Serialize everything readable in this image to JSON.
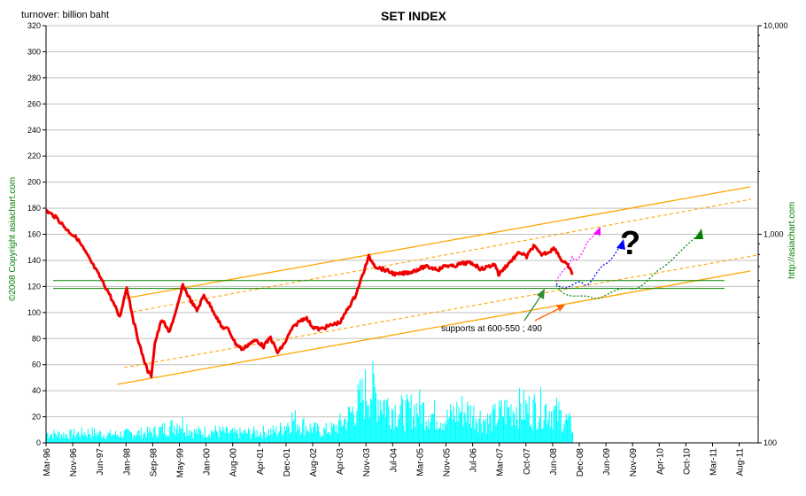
{
  "chart_data": {
    "type": "line",
    "title": "SET INDEX",
    "left_axis_label": "turnover: billion baht",
    "left_axis_ticks": [
      0,
      20,
      40,
      60,
      80,
      100,
      120,
      140,
      160,
      180,
      200,
      220,
      240,
      260,
      280,
      300,
      320
    ],
    "left_axis_range": [
      0,
      320
    ],
    "right_axis_ticks": [
      "100",
      "1,000",
      "10,000"
    ],
    "right_axis_values": [
      100,
      1000,
      10000
    ],
    "right_axis_scale": "log",
    "right_axis_range": [
      100,
      10000
    ],
    "x_tick_labels": [
      "Mar-96",
      "Nov-96",
      "Jun-97",
      "Jan-98",
      "Sep-98",
      "May-99",
      "Jan-00",
      "Aug-00",
      "Apr-01",
      "Dec-01",
      "Aug-02",
      "Apr-03",
      "Nov-03",
      "Jul-04",
      "Mar-05",
      "Nov-05",
      "Jul-06",
      "Mar-07",
      "Oct-07",
      "Jun-08",
      "Dec-08",
      "Jun-09",
      "Nov-09",
      "Apr-10",
      "Oct-10",
      "Mar-11",
      "Aug-11"
    ],
    "credit_left": "©2008 Copyright asiachart.com",
    "credit_right": "http://asiachart.com",
    "annotation": "supports at 600-550 ; 490",
    "question_mark": "?",
    "grid": "horizontal",
    "colors": {
      "index_line": "#ff0000",
      "index_line_dark": "#990000",
      "turnover_bars": "#00ffff",
      "channel_lines": "#ffa500",
      "support_lines": "#008000",
      "gridlines": "#c0c0c0",
      "projection_magenta": "#ff00ff",
      "projection_blue": "#0000ff",
      "projection_green": "#008000",
      "arrow_green": "#2e8b2e",
      "arrow_orange": "#ff6600"
    },
    "series": [
      {
        "name": "SET index",
        "axis": "right",
        "dates": [
          "1996-03",
          "1996-06",
          "1996-09",
          "1996-12",
          "1997-03",
          "1997-06",
          "1997-09",
          "1997-12",
          "1998-02",
          "1998-04",
          "1998-06",
          "1998-08",
          "1998-09",
          "1998-10",
          "1998-12",
          "1999-02",
          "1999-04",
          "1999-06",
          "1999-08",
          "1999-10",
          "1999-12",
          "2000-01",
          "2000-03",
          "2000-05",
          "2000-07",
          "2000-09",
          "2000-11",
          "2001-01",
          "2001-03",
          "2001-05",
          "2001-07",
          "2001-09",
          "2001-11",
          "2002-01",
          "2002-03",
          "2002-05",
          "2002-07",
          "2002-09",
          "2002-11",
          "2003-01",
          "2003-03",
          "2003-05",
          "2003-07",
          "2003-09",
          "2003-11",
          "2004-01",
          "2004-03",
          "2004-05",
          "2004-07",
          "2004-09",
          "2004-11",
          "2005-01",
          "2005-03",
          "2005-05",
          "2005-07",
          "2005-09",
          "2005-11",
          "2006-01",
          "2006-03",
          "2006-05",
          "2006-07",
          "2006-09",
          "2006-11",
          "2006-12",
          "2007-02",
          "2007-04",
          "2007-06",
          "2007-08",
          "2007-10",
          "2007-12",
          "2008-02",
          "2008-04",
          "2008-06",
          "2008-08",
          "2008-09"
        ],
        "values": [
          1300,
          1200,
          1050,
          950,
          780,
          640,
          520,
          400,
          560,
          380,
          280,
          220,
          210,
          300,
          390,
          340,
          420,
          570,
          490,
          430,
          510,
          480,
          420,
          360,
          350,
          300,
          280,
          300,
          310,
          290,
          320,
          270,
          300,
          350,
          380,
          400,
          360,
          350,
          360,
          370,
          380,
          440,
          500,
          620,
          780,
          700,
          680,
          660,
          640,
          650,
          660,
          680,
          700,
          690,
          680,
          710,
          700,
          720,
          730,
          720,
          680,
          700,
          720,
          640,
          700,
          760,
          820,
          780,
          880,
          800,
          820,
          860,
          750,
          700,
          640
        ]
      },
      {
        "name": "turnover",
        "axis": "left",
        "type": "bar",
        "dates": [
          "1996-03",
          "1996-09",
          "1997-03",
          "1997-09",
          "1998-03",
          "1998-09",
          "1999-03",
          "1999-05",
          "1999-09",
          "2000-03",
          "2000-09",
          "2001-03",
          "2001-09",
          "2002-01",
          "2002-05",
          "2002-09",
          "2003-01",
          "2003-05",
          "2003-09",
          "2003-11",
          "2004-01",
          "2004-05",
          "2004-09",
          "2005-01",
          "2005-05",
          "2005-09",
          "2006-01",
          "2006-05",
          "2006-09",
          "2007-01",
          "2007-05",
          "2007-09",
          "2008-01",
          "2008-05",
          "2008-09"
        ],
        "values": [
          8,
          7,
          9,
          7,
          8,
          9,
          14,
          18,
          9,
          10,
          8,
          9,
          10,
          20,
          14,
          10,
          12,
          22,
          38,
          48,
          40,
          30,
          25,
          30,
          24,
          20,
          28,
          24,
          18,
          26,
          30,
          28,
          30,
          24,
          14
        ]
      },
      {
        "name": "support 600",
        "axis": "right",
        "type": "horizontal",
        "values": [
          600
        ]
      },
      {
        "name": "support 550",
        "axis": "right",
        "type": "horizontal",
        "values": [
          550
        ]
      }
    ]
  }
}
